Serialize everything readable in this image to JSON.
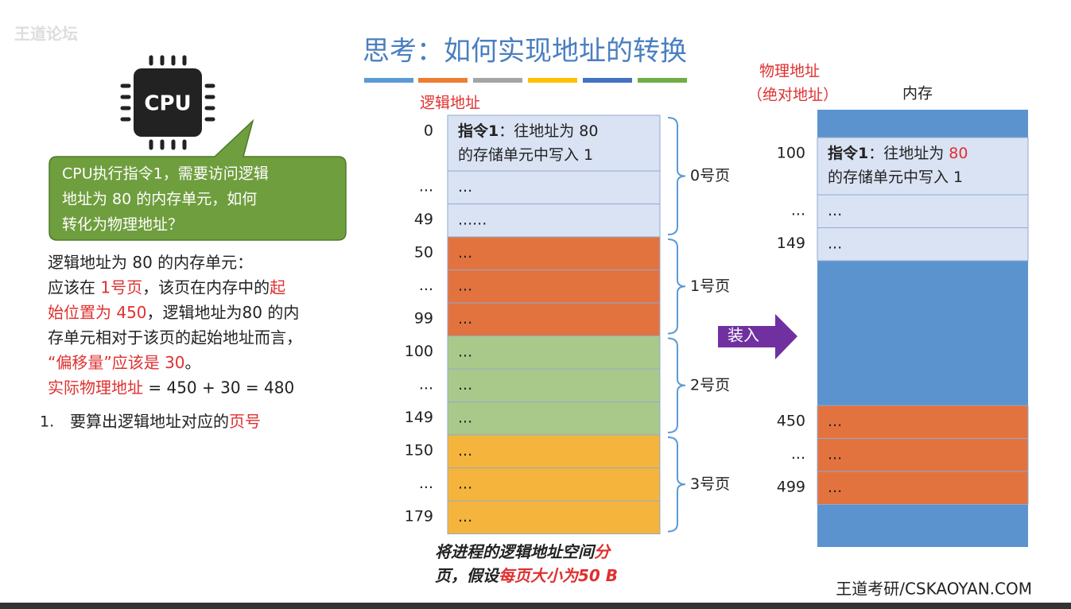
{
  "watermark": "王道论坛",
  "title": "思考：如何实现地址的转换",
  "cpu": {
    "label": "CPU",
    "callout": [
      "CPU执行指令1，需要访问逻辑",
      "地址为 80 的内存单元，如何",
      "转化为物理地址？"
    ]
  },
  "explanation": [
    [
      {
        "text": "逻辑地址为 80 的内存单元："
      }
    ],
    [
      {
        "text": "应该在 "
      },
      {
        "text": "1号页",
        "red": true
      },
      {
        "text": "，该页在内存中的"
      },
      {
        "text": "起",
        "red": true
      }
    ],
    [
      {
        "text": "始位置为 450",
        "red": true
      },
      {
        "text": "，逻辑地址为80 的内"
      }
    ],
    [
      {
        "text": "存单元相对于该页的起始地址而言，"
      }
    ],
    [
      {
        "text": "“偏移量”应该是 30",
        "red": true
      },
      {
        "text": "。"
      }
    ],
    [
      {
        "text": "实际物理地址",
        "red": true
      },
      {
        "text": " = 450 + 30 = 480"
      }
    ]
  ],
  "steps": [
    {
      "marker": "1.",
      "runs": [
        {
          "text": "要算出逻辑地址对应的"
        },
        {
          "text": "页号",
          "red": true
        }
      ]
    }
  ],
  "logical": {
    "label": "逻辑地址",
    "pages": [
      {
        "label": "0号页",
        "color": "#dae3f3",
        "rows": [
          {
            "address": "0",
            "lines": [
              [
                {
                  "text": "指令1",
                  "bold": true
                },
                {
                  "text": "：往地址为 80"
                }
              ],
              [
                {
                  "text": "的存储单元中写入 1"
                }
              ]
            ]
          },
          {
            "address": "...",
            "lines": [
              [
                {
                  "text": "..."
                }
              ]
            ]
          },
          {
            "address": "49",
            "lines": [
              [
                {
                  "text": "......"
                }
              ]
            ]
          }
        ]
      },
      {
        "label": "1号页",
        "color": "#e2733f",
        "rows": [
          {
            "address": "50",
            "lines": [
              [
                {
                  "text": "..."
                }
              ]
            ]
          },
          {
            "address": "...",
            "lines": [
              [
                {
                  "text": "..."
                }
              ]
            ]
          },
          {
            "address": "99",
            "lines": [
              [
                {
                  "text": "..."
                }
              ]
            ]
          }
        ]
      },
      {
        "label": "2号页",
        "color": "#a9c98a",
        "rows": [
          {
            "address": "100",
            "lines": [
              [
                {
                  "text": "..."
                }
              ]
            ]
          },
          {
            "address": "...",
            "lines": [
              [
                {
                  "text": "..."
                }
              ]
            ]
          },
          {
            "address": "149",
            "lines": [
              [
                {
                  "text": "..."
                }
              ]
            ]
          }
        ]
      },
      {
        "label": "3号页",
        "color": "#f5b53c",
        "rows": [
          {
            "address": "150",
            "lines": [
              [
                {
                  "text": "..."
                }
              ]
            ]
          },
          {
            "address": "...",
            "lines": [
              [
                {
                  "text": "..."
                }
              ]
            ]
          },
          {
            "address": "179",
            "lines": [
              [
                {
                  "text": "..."
                }
              ]
            ]
          }
        ]
      }
    ],
    "caption": [
      [
        {
          "text": "将进程的逻辑地址空间"
        },
        {
          "text": "分",
          "red": true
        }
      ],
      [
        {
          "text": "页，假设"
        },
        {
          "text": "每页大小为50 B",
          "red": true
        }
      ]
    ]
  },
  "load_arrow": "装入",
  "physical": {
    "label": [
      "物理地址",
      "（绝对地址）"
    ],
    "memory_label": "内存",
    "color": "#5b93cf",
    "blocks": [
      {
        "color": "#dae3f3",
        "rows": [
          {
            "address": "100",
            "lines": [
              [
                {
                  "text": "指令1",
                  "bold": true
                },
                {
                  "text": "：往地址为 "
                },
                {
                  "text": "80",
                  "red": true
                }
              ],
              [
                {
                  "text": "的存储单元中写入 1"
                }
              ]
            ]
          },
          {
            "address": "...",
            "lines": [
              [
                {
                  "text": "..."
                }
              ]
            ]
          },
          {
            "address": "149",
            "lines": [
              [
                {
                  "text": "..."
                }
              ]
            ]
          }
        ]
      },
      {
        "color": "#e2733f",
        "rows": [
          {
            "address": "450",
            "lines": [
              [
                {
                  "text": "..."
                }
              ]
            ]
          },
          {
            "address": "...",
            "lines": [
              [
                {
                  "text": "..."
                }
              ]
            ]
          },
          {
            "address": "499",
            "lines": [
              [
                {
                  "text": "..."
                }
              ]
            ]
          }
        ]
      }
    ]
  },
  "footer": "王道考研/CSKAOYAN.COM"
}
